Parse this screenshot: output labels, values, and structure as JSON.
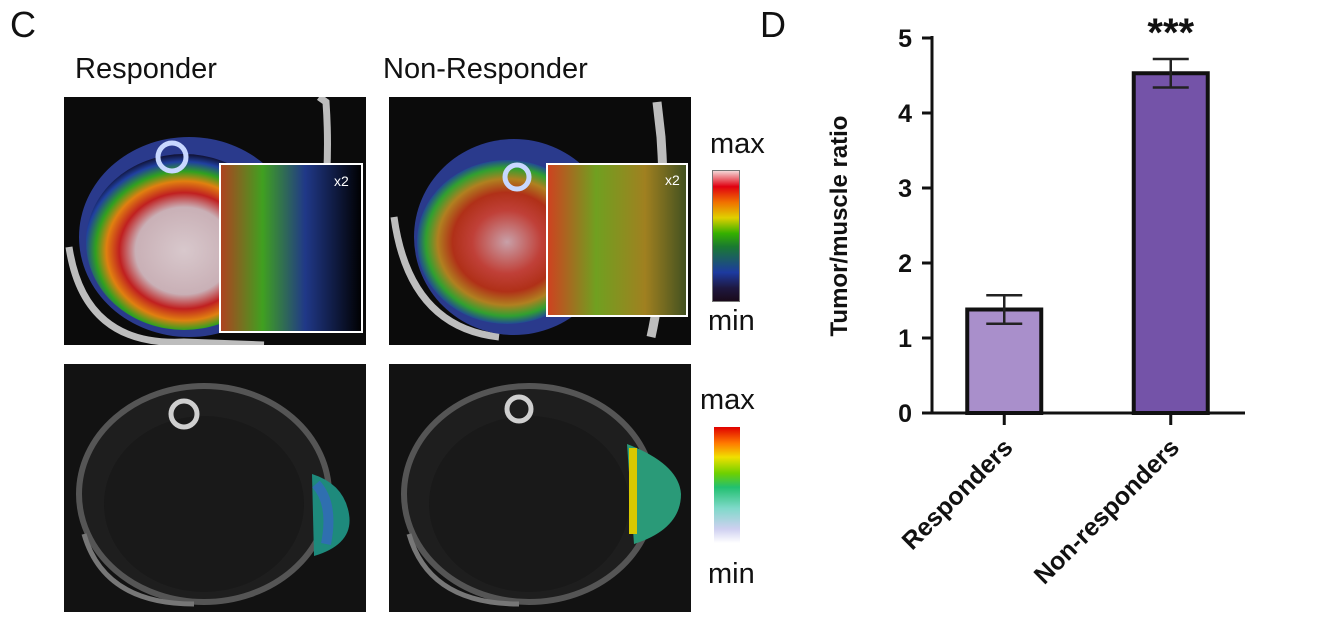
{
  "panel_c": {
    "letter": "C",
    "col_left": "Responder",
    "col_right": "Non-Responder",
    "zoom_label": "x2",
    "scale_top": {
      "max": "max",
      "min": "min"
    },
    "scale_bottom": {
      "max": "max",
      "min": "min"
    },
    "colors": {
      "scan_bg": "#0a0a0a",
      "bone": "#cfcfcf"
    }
  },
  "panel_d": {
    "letter": "D"
  },
  "chart_data": {
    "type": "bar",
    "categories": [
      "Responders",
      "Non-responders"
    ],
    "values": [
      1.38,
      4.53
    ],
    "errors": [
      0.19,
      0.19
    ],
    "colors": [
      "#a98fcb",
      "#7453a8"
    ],
    "ylabel": "Tumor/muscle ratio",
    "ylim": [
      0,
      5
    ],
    "yticks": [
      "0",
      "1",
      "2",
      "3",
      "4",
      "5"
    ],
    "annotation": "***",
    "grid": false
  }
}
